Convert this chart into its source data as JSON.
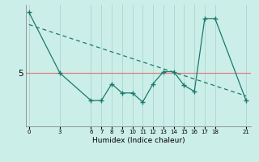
{
  "xlabel": "Humidex (Indice chaleur)",
  "background_color": "#cceee8",
  "line_color": "#1a7a6e",
  "hline_color": "#e08080",
  "grid_color": "#b0d8d4",
  "xticks": [
    0,
    3,
    6,
    7,
    8,
    9,
    10,
    11,
    12,
    13,
    14,
    15,
    16,
    17,
    18,
    21
  ],
  "xlim": [
    -0.3,
    21.5
  ],
  "ylim": [
    1.5,
    9.5
  ],
  "zigzag_x": [
    0,
    3,
    6,
    7,
    8,
    9,
    10,
    11,
    12,
    13,
    14,
    15,
    16,
    17,
    18,
    21
  ],
  "zigzag_y": [
    9.0,
    5.0,
    3.2,
    3.2,
    4.3,
    3.7,
    3.7,
    3.1,
    4.3,
    5.1,
    5.1,
    4.2,
    3.8,
    8.6,
    8.6,
    3.2
  ],
  "trend_x": [
    0,
    21
  ],
  "trend_y": [
    8.2,
    3.5
  ],
  "hline_y": 5,
  "ytick_val": 5
}
